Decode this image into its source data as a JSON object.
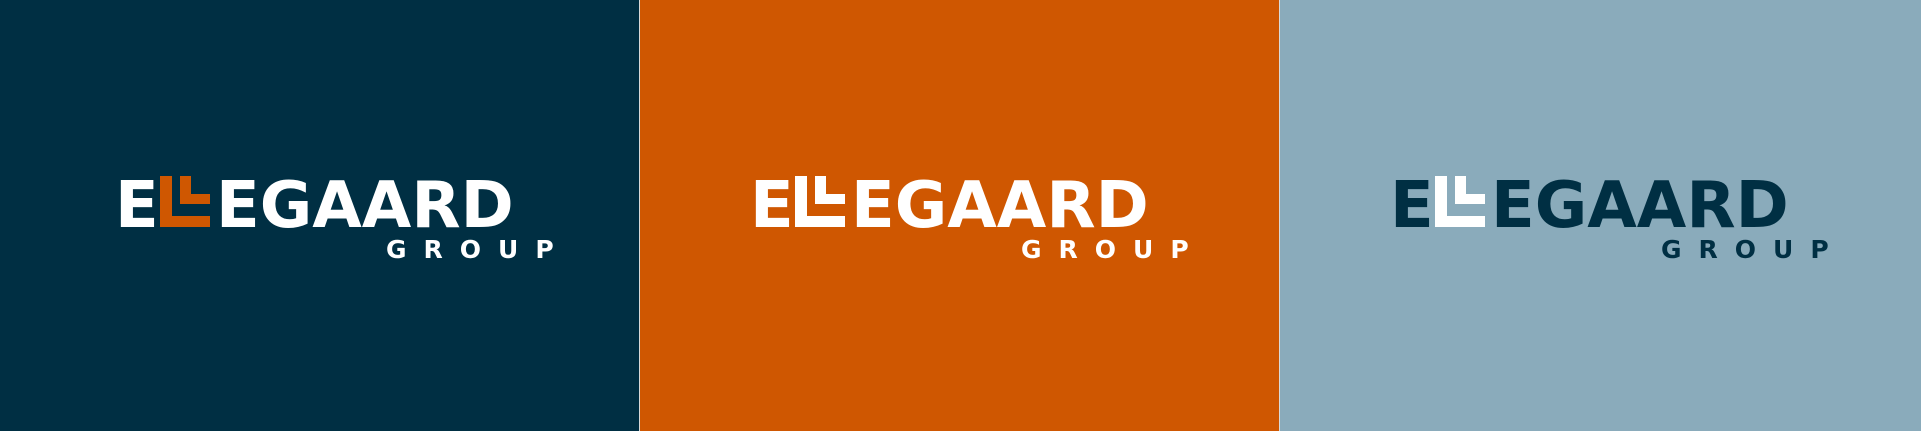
{
  "logo": {
    "text_prefix": "E",
    "text_suffix": "EGAARD",
    "subtitle": "GROUP",
    "full_name": "ELLEGAARD GROUP"
  },
  "panels": [
    {
      "name": "dark-navy",
      "background": "#002f43",
      "text_color": "#ffffff",
      "ll_color": "#cf5701"
    },
    {
      "name": "orange",
      "background": "#cf5701",
      "text_color": "#ffffff",
      "ll_color": "#ffffff"
    },
    {
      "name": "light-blue",
      "background": "#8aabbb",
      "text_color": "#002f43",
      "ll_color": "#ffffff"
    }
  ]
}
